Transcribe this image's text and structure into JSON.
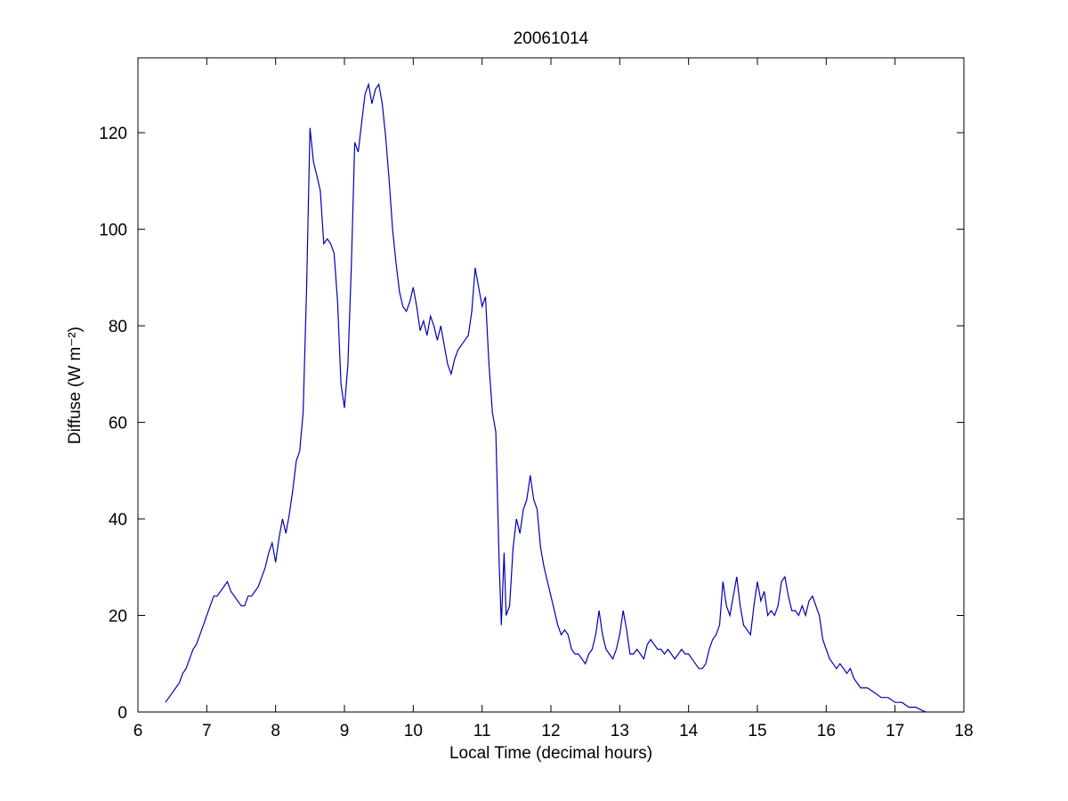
{
  "figure": {
    "title": "20061014"
  },
  "chart_data": {
    "type": "line",
    "title": "20061014",
    "xlabel": "Local Time (decimal hours)",
    "ylabel": "Diffuse (W m⁻²)",
    "xlim": [
      6,
      18
    ],
    "ylim": [
      0,
      135.5
    ],
    "x_ticks": [
      6,
      7,
      8,
      9,
      10,
      11,
      12,
      13,
      14,
      15,
      16,
      17,
      18
    ],
    "y_ticks": [
      0,
      20,
      40,
      60,
      80,
      100,
      120
    ],
    "grid": false,
    "legend": null,
    "line_color": "#0000b4",
    "axis_color": "#000000",
    "background_color": "#ffffff",
    "series": [
      {
        "name": "Diffuse",
        "points": [
          [
            6.4,
            2
          ],
          [
            6.45,
            3
          ],
          [
            6.5,
            4
          ],
          [
            6.55,
            5
          ],
          [
            6.6,
            6
          ],
          [
            6.65,
            8
          ],
          [
            6.7,
            9
          ],
          [
            6.75,
            11
          ],
          [
            6.8,
            13
          ],
          [
            6.85,
            14
          ],
          [
            6.9,
            16
          ],
          [
            6.95,
            18
          ],
          [
            7.0,
            20
          ],
          [
            7.05,
            22
          ],
          [
            7.1,
            24
          ],
          [
            7.15,
            24
          ],
          [
            7.2,
            25
          ],
          [
            7.25,
            26
          ],
          [
            7.3,
            27
          ],
          [
            7.35,
            25
          ],
          [
            7.4,
            24
          ],
          [
            7.45,
            23
          ],
          [
            7.5,
            22
          ],
          [
            7.55,
            22
          ],
          [
            7.6,
            24
          ],
          [
            7.65,
            24
          ],
          [
            7.7,
            25
          ],
          [
            7.75,
            26
          ],
          [
            7.8,
            28
          ],
          [
            7.85,
            30
          ],
          [
            7.9,
            33
          ],
          [
            7.95,
            35
          ],
          [
            8.0,
            31
          ],
          [
            8.05,
            36
          ],
          [
            8.1,
            40
          ],
          [
            8.15,
            37
          ],
          [
            8.2,
            41
          ],
          [
            8.25,
            46
          ],
          [
            8.3,
            52
          ],
          [
            8.35,
            54
          ],
          [
            8.4,
            62
          ],
          [
            8.45,
            88
          ],
          [
            8.5,
            121
          ],
          [
            8.55,
            114
          ],
          [
            8.6,
            111
          ],
          [
            8.65,
            108
          ],
          [
            8.7,
            97
          ],
          [
            8.75,
            98
          ],
          [
            8.8,
            97
          ],
          [
            8.85,
            95
          ],
          [
            8.9,
            85
          ],
          [
            8.95,
            68
          ],
          [
            9.0,
            63
          ],
          [
            9.05,
            72
          ],
          [
            9.1,
            92
          ],
          [
            9.15,
            118
          ],
          [
            9.2,
            116
          ],
          [
            9.25,
            122
          ],
          [
            9.3,
            128
          ],
          [
            9.35,
            130
          ],
          [
            9.4,
            126
          ],
          [
            9.45,
            129
          ],
          [
            9.5,
            130
          ],
          [
            9.55,
            126
          ],
          [
            9.6,
            119
          ],
          [
            9.65,
            110
          ],
          [
            9.7,
            100
          ],
          [
            9.75,
            93
          ],
          [
            9.8,
            87
          ],
          [
            9.85,
            84
          ],
          [
            9.9,
            83
          ],
          [
            9.95,
            85
          ],
          [
            10.0,
            88
          ],
          [
            10.05,
            84
          ],
          [
            10.1,
            79
          ],
          [
            10.15,
            81
          ],
          [
            10.2,
            78
          ],
          [
            10.25,
            82
          ],
          [
            10.3,
            80
          ],
          [
            10.35,
            77
          ],
          [
            10.4,
            80
          ],
          [
            10.45,
            76
          ],
          [
            10.5,
            72
          ],
          [
            10.55,
            70
          ],
          [
            10.6,
            73
          ],
          [
            10.65,
            75
          ],
          [
            10.7,
            76
          ],
          [
            10.75,
            77
          ],
          [
            10.8,
            78
          ],
          [
            10.85,
            83
          ],
          [
            10.9,
            92
          ],
          [
            10.95,
            88
          ],
          [
            11.0,
            84
          ],
          [
            11.05,
            86
          ],
          [
            11.1,
            72
          ],
          [
            11.15,
            62
          ],
          [
            11.2,
            58
          ],
          [
            11.25,
            30
          ],
          [
            11.28,
            18
          ],
          [
            11.32,
            33
          ],
          [
            11.35,
            20
          ],
          [
            11.4,
            22
          ],
          [
            11.45,
            34
          ],
          [
            11.5,
            40
          ],
          [
            11.55,
            37
          ],
          [
            11.6,
            42
          ],
          [
            11.65,
            44
          ],
          [
            11.7,
            49
          ],
          [
            11.75,
            44
          ],
          [
            11.8,
            42
          ],
          [
            11.85,
            34
          ],
          [
            11.9,
            30
          ],
          [
            11.95,
            27
          ],
          [
            12.0,
            24
          ],
          [
            12.05,
            21
          ],
          [
            12.1,
            18
          ],
          [
            12.15,
            16
          ],
          [
            12.2,
            17
          ],
          [
            12.25,
            16
          ],
          [
            12.3,
            13
          ],
          [
            12.35,
            12
          ],
          [
            12.4,
            12
          ],
          [
            12.45,
            11
          ],
          [
            12.5,
            10
          ],
          [
            12.55,
            12
          ],
          [
            12.6,
            13
          ],
          [
            12.65,
            16
          ],
          [
            12.7,
            21
          ],
          [
            12.75,
            16
          ],
          [
            12.8,
            13
          ],
          [
            12.85,
            12
          ],
          [
            12.9,
            11
          ],
          [
            12.95,
            13
          ],
          [
            13.0,
            16
          ],
          [
            13.05,
            21
          ],
          [
            13.1,
            17
          ],
          [
            13.15,
            12
          ],
          [
            13.2,
            12
          ],
          [
            13.25,
            13
          ],
          [
            13.3,
            12
          ],
          [
            13.35,
            11
          ],
          [
            13.4,
            14
          ],
          [
            13.45,
            15
          ],
          [
            13.5,
            14
          ],
          [
            13.55,
            13
          ],
          [
            13.6,
            13
          ],
          [
            13.65,
            12
          ],
          [
            13.7,
            13
          ],
          [
            13.75,
            12
          ],
          [
            13.8,
            11
          ],
          [
            13.85,
            12
          ],
          [
            13.9,
            13
          ],
          [
            13.95,
            12
          ],
          [
            14.0,
            12
          ],
          [
            14.05,
            11
          ],
          [
            14.1,
            10
          ],
          [
            14.15,
            9
          ],
          [
            14.2,
            9
          ],
          [
            14.25,
            10
          ],
          [
            14.3,
            13
          ],
          [
            14.35,
            15
          ],
          [
            14.4,
            16
          ],
          [
            14.45,
            18
          ],
          [
            14.5,
            27
          ],
          [
            14.55,
            22
          ],
          [
            14.6,
            20
          ],
          [
            14.65,
            24
          ],
          [
            14.7,
            28
          ],
          [
            14.75,
            22
          ],
          [
            14.8,
            18
          ],
          [
            14.85,
            17
          ],
          [
            14.9,
            16
          ],
          [
            14.95,
            22
          ],
          [
            15.0,
            27
          ],
          [
            15.05,
            23
          ],
          [
            15.1,
            25
          ],
          [
            15.15,
            20
          ],
          [
            15.2,
            21
          ],
          [
            15.25,
            20
          ],
          [
            15.3,
            22
          ],
          [
            15.35,
            27
          ],
          [
            15.4,
            28
          ],
          [
            15.45,
            24
          ],
          [
            15.5,
            21
          ],
          [
            15.55,
            21
          ],
          [
            15.6,
            20
          ],
          [
            15.65,
            22
          ],
          [
            15.7,
            20
          ],
          [
            15.75,
            23
          ],
          [
            15.8,
            24
          ],
          [
            15.85,
            22
          ],
          [
            15.9,
            20
          ],
          [
            15.95,
            15
          ],
          [
            16.0,
            13
          ],
          [
            16.05,
            11
          ],
          [
            16.1,
            10
          ],
          [
            16.15,
            9
          ],
          [
            16.2,
            10
          ],
          [
            16.25,
            9
          ],
          [
            16.3,
            8
          ],
          [
            16.35,
            9
          ],
          [
            16.4,
            7
          ],
          [
            16.45,
            6
          ],
          [
            16.5,
            5
          ],
          [
            16.55,
            5
          ],
          [
            16.6,
            5
          ],
          [
            16.7,
            4
          ],
          [
            16.8,
            3
          ],
          [
            16.9,
            3
          ],
          [
            17.0,
            2
          ],
          [
            17.1,
            2
          ],
          [
            17.2,
            1
          ],
          [
            17.3,
            1
          ],
          [
            17.4,
            0.3
          ],
          [
            17.45,
            0
          ]
        ]
      }
    ]
  }
}
